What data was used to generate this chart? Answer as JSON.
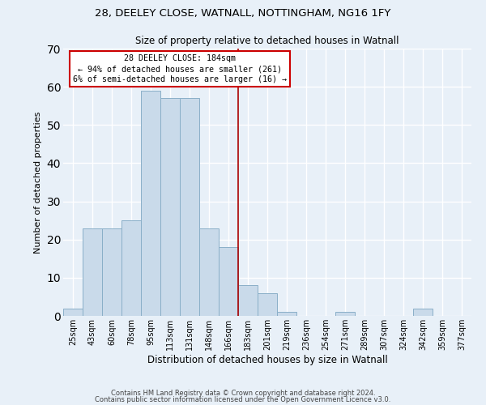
{
  "title_line1": "28, DEELEY CLOSE, WATNALL, NOTTINGHAM, NG16 1FY",
  "title_line2": "Size of property relative to detached houses in Watnall",
  "xlabel": "Distribution of detached houses by size in Watnall",
  "ylabel": "Number of detached properties",
  "categories": [
    "25sqm",
    "43sqm",
    "60sqm",
    "78sqm",
    "95sqm",
    "113sqm",
    "131sqm",
    "148sqm",
    "166sqm",
    "183sqm",
    "201sqm",
    "219sqm",
    "236sqm",
    "254sqm",
    "271sqm",
    "289sqm",
    "307sqm",
    "324sqm",
    "342sqm",
    "359sqm",
    "377sqm"
  ],
  "values": [
    2,
    23,
    23,
    25,
    59,
    57,
    57,
    23,
    18,
    8,
    6,
    1,
    0,
    0,
    1,
    0,
    0,
    0,
    2,
    0,
    0
  ],
  "bar_color": "#c9daea",
  "bar_edge_color": "#8aafc8",
  "annotation_line1": "28 DEELEY CLOSE: 184sqm",
  "annotation_line2": "← 94% of detached houses are smaller (261)",
  "annotation_line3": "6% of semi-detached houses are larger (16) →",
  "ylim": [
    0,
    70
  ],
  "yticks": [
    0,
    10,
    20,
    30,
    40,
    50,
    60,
    70
  ],
  "footer_line1": "Contains HM Land Registry data © Crown copyright and database right 2024.",
  "footer_line2": "Contains public sector information licensed under the Open Government Licence v3.0.",
  "background_color": "#e8f0f8",
  "grid_color": "#ffffff"
}
